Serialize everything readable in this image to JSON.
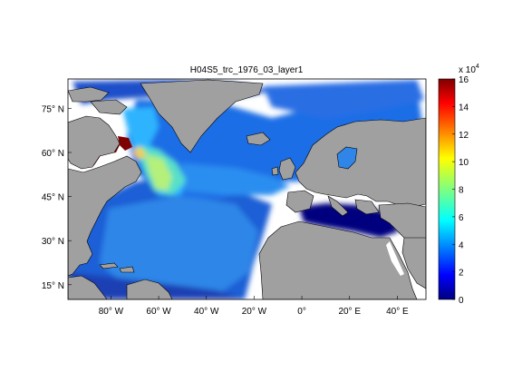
{
  "title": "H04S5_trc_1976_03_layer1",
  "map": {
    "lon_ticks": [
      "80° W",
      "60° W",
      "40° W",
      "20° W",
      "0°",
      "20° E",
      "40° E"
    ],
    "lat_ticks": [
      "75° N",
      "60° N",
      "45° N",
      "30° N",
      "15° N"
    ],
    "lon_range_deg": [
      -98,
      52
    ],
    "lat_range_deg": [
      10,
      85
    ]
  },
  "colorbar": {
    "multiplier_label": "x 10",
    "multiplier_exponent": "4",
    "tick_labels": [
      "16",
      "14",
      "12",
      "10",
      "8",
      "6",
      "4",
      "2",
      "0"
    ],
    "range": [
      0,
      16
    ],
    "colormap": "jet",
    "units_multiplier": 10000
  },
  "colors": {
    "land": "#a0a0a0",
    "background": "#ffffff",
    "low_value": "#00007f",
    "high_value": "#7f0000"
  }
}
